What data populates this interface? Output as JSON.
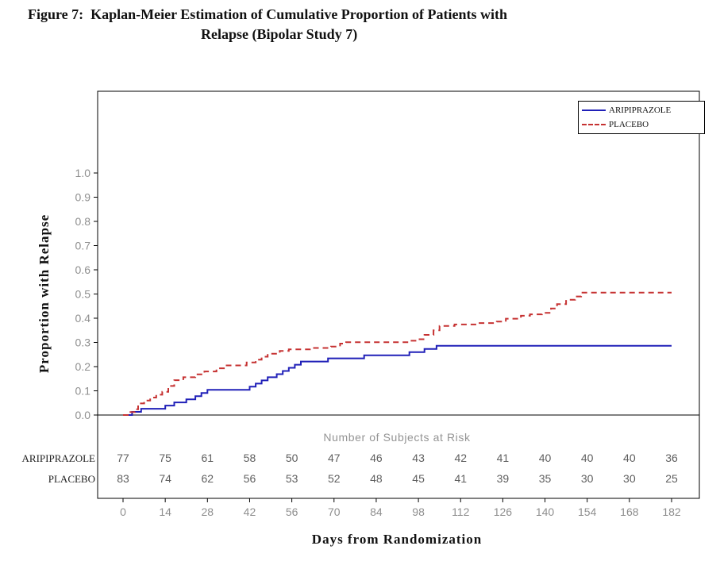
{
  "figure": {
    "title_line1": "Figure 7:  Kaplan-Meier Estimation of Cumulative Proportion of Patients with",
    "title_line2": "Relapse (Bipolar Study 7)"
  },
  "chart_data": {
    "type": "line",
    "subtype": "kaplan-meier-step",
    "title": "Kaplan-Meier Estimation of Cumulative Proportion of Patients with Relapse (Bipolar Study 7)",
    "xlabel": "Days from Randomization",
    "ylabel": "Proportion with Relapse",
    "xlim": [
      0,
      182
    ],
    "ylim": [
      0.0,
      1.0
    ],
    "xticks": [
      0,
      14,
      28,
      42,
      56,
      70,
      84,
      98,
      112,
      126,
      140,
      154,
      168,
      182
    ],
    "yticks": [
      0.0,
      0.1,
      0.2,
      0.3,
      0.4,
      0.5,
      0.6,
      0.7,
      0.8,
      0.9,
      1.0
    ],
    "grid": false,
    "legend_position": "top-right-inside",
    "legend": [
      {
        "name": "ARIPIPRAZOLE",
        "color": "#2020b8",
        "dashed": false
      },
      {
        "name": "PLACEBO",
        "color": "#c63232",
        "dashed": true
      }
    ],
    "series": [
      {
        "name": "ARIPIPRAZOLE",
        "color": "#2020b8",
        "dashed": false,
        "points": [
          [
            0,
            0
          ],
          [
            3,
            0.013
          ],
          [
            6,
            0.026
          ],
          [
            14,
            0.039
          ],
          [
            17,
            0.052
          ],
          [
            21,
            0.065
          ],
          [
            24,
            0.078
          ],
          [
            26,
            0.091
          ],
          [
            28,
            0.104
          ],
          [
            42,
            0.117
          ],
          [
            44,
            0.13
          ],
          [
            46,
            0.143
          ],
          [
            48,
            0.156
          ],
          [
            51,
            0.169
          ],
          [
            53,
            0.182
          ],
          [
            55,
            0.195
          ],
          [
            57,
            0.208
          ],
          [
            59,
            0.221
          ],
          [
            68,
            0.234
          ],
          [
            80,
            0.247
          ],
          [
            95,
            0.26
          ],
          [
            100,
            0.273
          ],
          [
            104,
            0.286
          ],
          [
            182,
            0.286
          ]
        ]
      },
      {
        "name": "PLACEBO",
        "color": "#c63232",
        "dashed": true,
        "points": [
          [
            0,
            0
          ],
          [
            2,
            0.012
          ],
          [
            4,
            0.024
          ],
          [
            5,
            0.048
          ],
          [
            7,
            0.06
          ],
          [
            9,
            0.072
          ],
          [
            11,
            0.084
          ],
          [
            13,
            0.096
          ],
          [
            15,
            0.12
          ],
          [
            17,
            0.144
          ],
          [
            20,
            0.156
          ],
          [
            24,
            0.168
          ],
          [
            27,
            0.18
          ],
          [
            31,
            0.193
          ],
          [
            34,
            0.205
          ],
          [
            41,
            0.217
          ],
          [
            44,
            0.229
          ],
          [
            46,
            0.241
          ],
          [
            48,
            0.253
          ],
          [
            52,
            0.265
          ],
          [
            55,
            0.271
          ],
          [
            62,
            0.277
          ],
          [
            69,
            0.283
          ],
          [
            72,
            0.295
          ],
          [
            74,
            0.301
          ],
          [
            95,
            0.307
          ],
          [
            98,
            0.313
          ],
          [
            100,
            0.331
          ],
          [
            103,
            0.35
          ],
          [
            105,
            0.368
          ],
          [
            110,
            0.374
          ],
          [
            118,
            0.38
          ],
          [
            124,
            0.386
          ],
          [
            127,
            0.398
          ],
          [
            132,
            0.41
          ],
          [
            135,
            0.416
          ],
          [
            139,
            0.422
          ],
          [
            142,
            0.44
          ],
          [
            144,
            0.458
          ],
          [
            147,
            0.476
          ],
          [
            150,
            0.49
          ],
          [
            152,
            0.506
          ],
          [
            182,
            0.506
          ]
        ]
      }
    ],
    "risk_table": {
      "header": "Number of Subjects at Risk",
      "rows": [
        {
          "label": "ARIPIPRAZOLE",
          "values": [
            77,
            75,
            61,
            58,
            50,
            47,
            46,
            43,
            42,
            41,
            40,
            40,
            40,
            36
          ]
        },
        {
          "label": "PLACEBO",
          "values": [
            83,
            74,
            62,
            56,
            53,
            52,
            48,
            45,
            41,
            39,
            35,
            30,
            30,
            25
          ]
        }
      ]
    }
  }
}
